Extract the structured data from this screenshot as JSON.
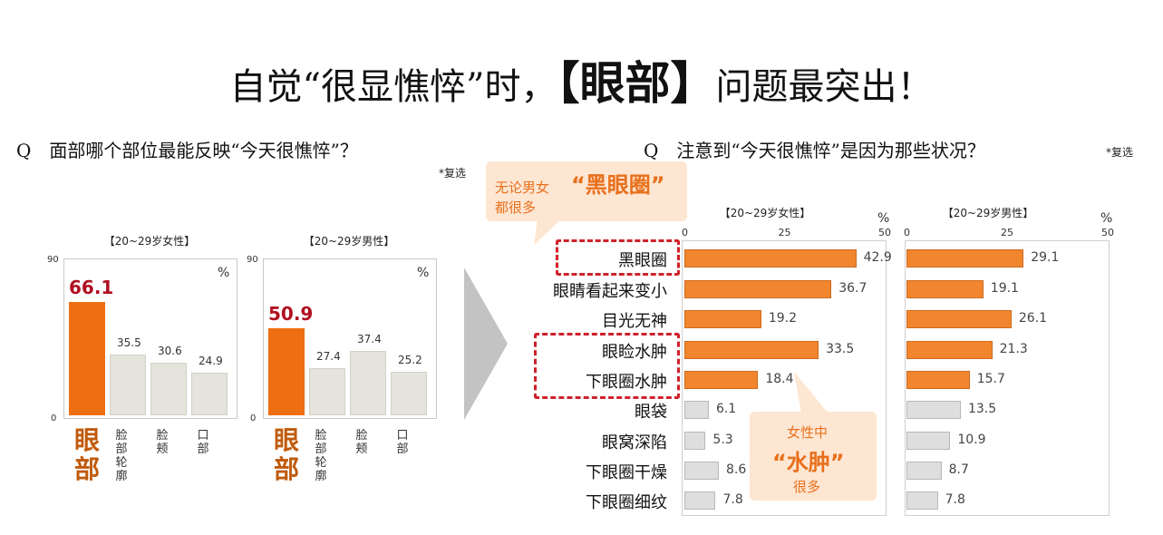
{
  "title": {
    "part1": "自觉“很显憔悴”时，",
    "part2": "【眼部】",
    "part3": "问题最突出！"
  },
  "left": {
    "question": "Q　面部哪个部位最能反映“今天很憔悴”？",
    "note": "*复选",
    "unit": "%"
  },
  "right": {
    "question": "Q　注意到“今天很憔悴”是因为那些状况？",
    "note": "*复选",
    "unit": "%"
  },
  "callout_top": {
    "line1": "无论男女",
    "emph": "“黑眼圈”",
    "line2": "都很多"
  },
  "callout_bottom": {
    "line1": "女性中",
    "emph": "“水肿”",
    "line2": "很多"
  },
  "colors": {
    "accent": "#f1862f",
    "highlight": "#ee6e12",
    "gray": "#e4e4dc",
    "red_label": "#b01020"
  },
  "chart_data": [
    {
      "type": "bar",
      "title": "【20~29岁女性】",
      "categories": [
        "眼部",
        "脸部轮廓",
        "脸颊",
        "口部"
      ],
      "values": [
        66.1,
        35.5,
        30.6,
        24.9
      ],
      "ylim": [
        0,
        90
      ],
      "yticks": [
        "0",
        "90"
      ],
      "ylabel": "%"
    },
    {
      "type": "bar",
      "title": "【20~29岁男性】",
      "categories": [
        "眼部",
        "脸部轮廓",
        "脸颊",
        "口部"
      ],
      "values": [
        50.9,
        27.4,
        37.4,
        25.2
      ],
      "ylim": [
        0,
        90
      ],
      "yticks": [
        "0",
        "90"
      ],
      "ylabel": "%"
    },
    {
      "type": "bar",
      "orientation": "horizontal",
      "title": "【20~29岁女性】",
      "categories": [
        "黑眼圈",
        "眼睛看起来变小",
        "目光无神",
        "眼睑水肿",
        "下眼圈水肿",
        "眼袋",
        "眼窝深陷",
        "下眼圈干燥",
        "下眼圈细纹"
      ],
      "values": [
        42.9,
        36.7,
        19.2,
        33.5,
        18.4,
        6.1,
        5.3,
        8.6,
        7.8
      ],
      "xlim": [
        0,
        50
      ],
      "xticks": [
        "0",
        "25",
        "50"
      ],
      "xlabel": "%"
    },
    {
      "type": "bar",
      "orientation": "horizontal",
      "title": "【20~29岁男性】",
      "categories": [
        "黑眼圈",
        "眼睛看起来变小",
        "目光无神",
        "眼睑水肿",
        "下眼圈水肿",
        "眼袋",
        "眼窝深陷",
        "下眼圈干燥",
        "下眼圈细纹"
      ],
      "values": [
        29.1,
        19.1,
        26.1,
        21.3,
        15.7,
        13.5,
        10.9,
        8.7,
        7.8
      ],
      "xlim": [
        0,
        50
      ],
      "xticks": [
        "0",
        "25",
        "50"
      ],
      "xlabel": "%"
    }
  ]
}
